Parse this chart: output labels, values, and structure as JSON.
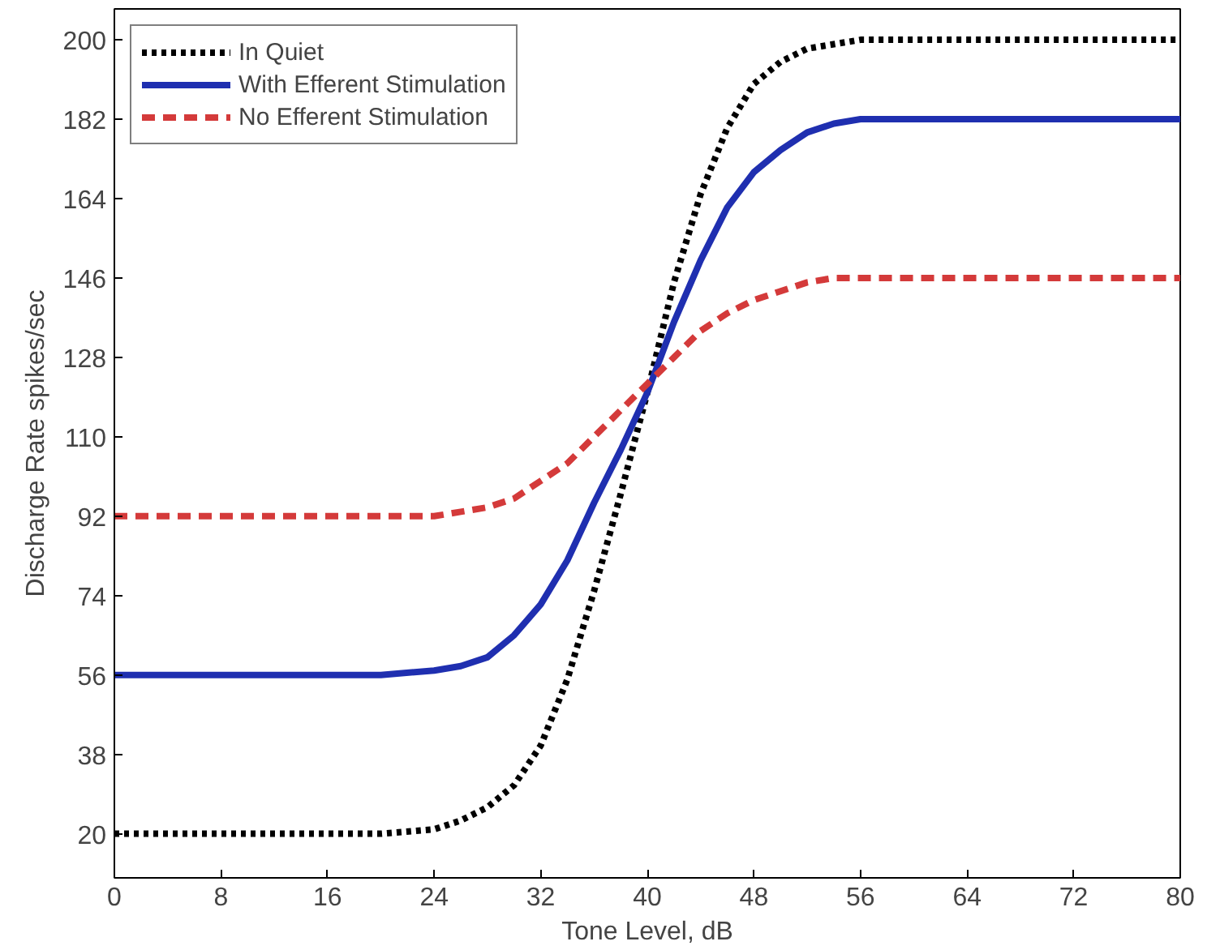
{
  "chart_data": {
    "type": "line",
    "xlabel": "Tone Level, dB",
    "ylabel": "Discharge Rate spikes/sec",
    "x": [
      0,
      8,
      16,
      20,
      24,
      26,
      28,
      30,
      32,
      34,
      36,
      38,
      40,
      42,
      44,
      46,
      48,
      50,
      52,
      54,
      56,
      64,
      72,
      80
    ],
    "series": [
      {
        "name": "In Quiet",
        "color": "#000000",
        "line_style": "dotted",
        "values": [
          20,
          20,
          20,
          20,
          21,
          23,
          26,
          31,
          40,
          55,
          75,
          97,
          120,
          145,
          165,
          180,
          190,
          195,
          198,
          199,
          200,
          200,
          200,
          200
        ]
      },
      {
        "name": "With Efferent Stimulation",
        "color": "#1f2fb0",
        "line_style": "solid",
        "values": [
          56,
          56,
          56,
          56,
          57,
          58,
          60,
          65,
          72,
          82,
          95,
          107,
          120,
          136,
          150,
          162,
          170,
          175,
          179,
          181,
          182,
          182,
          182,
          182
        ]
      },
      {
        "name": "No Efferent Stimulation",
        "color": "#d43a3a",
        "line_style": "dashed",
        "values": [
          92,
          92,
          92,
          92,
          92,
          93,
          94,
          96,
          100,
          104,
          110,
          116,
          122,
          128,
          134,
          138,
          141,
          143,
          145,
          146,
          146,
          146,
          146,
          146
        ]
      }
    ],
    "xlim": [
      0,
      80
    ],
    "xticks": [
      0,
      8,
      16,
      24,
      32,
      40,
      48,
      56,
      64,
      72,
      80
    ],
    "ylim": [
      10,
      207
    ],
    "yticks": [
      20,
      38,
      56,
      74,
      92,
      110,
      128,
      146,
      164,
      182,
      200
    ],
    "grid": false,
    "legend": "top left",
    "marker": "none"
  }
}
